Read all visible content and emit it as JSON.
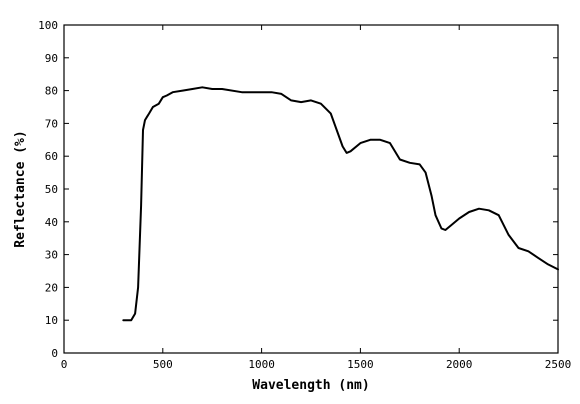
{
  "chart_data": {
    "type": "line",
    "title": "",
    "xlabel": "Wavelength (nm)",
    "ylabel": "Reflectance (%)",
    "xlim": [
      0,
      2500
    ],
    "ylim": [
      0,
      100
    ],
    "x_ticks": [
      0,
      500,
      1000,
      1500,
      2000,
      2500
    ],
    "y_ticks": [
      0,
      10,
      20,
      30,
      40,
      50,
      60,
      70,
      80,
      90,
      100
    ],
    "grid": false,
    "legend": "none",
    "line_color": "#000000",
    "series": [
      {
        "x": [
          300,
          340,
          360,
          375,
          390,
          400,
          410,
          420,
          430,
          450,
          480,
          500,
          520,
          550,
          600,
          650,
          700,
          750,
          800,
          900,
          950,
          1000,
          1050,
          1100,
          1150,
          1200,
          1250,
          1300,
          1350,
          1380,
          1410,
          1430,
          1450,
          1500,
          1550,
          1600,
          1650,
          1700,
          1750,
          1800,
          1830,
          1860,
          1880,
          1910,
          1930,
          1960,
          2000,
          2050,
          2100,
          2150,
          2200,
          2250,
          2300,
          2350,
          2400,
          2450,
          2500
        ],
        "y": [
          10,
          10,
          12,
          20,
          45,
          68,
          71,
          72,
          73,
          75,
          76,
          78,
          78.5,
          79.5,
          80,
          80.5,
          81,
          80.5,
          80.5,
          79.5,
          79.5,
          79.5,
          79.5,
          79,
          77,
          76.5,
          77,
          76,
          73,
          68,
          63,
          61,
          61.5,
          64,
          65,
          65,
          64,
          59,
          58,
          57.5,
          55,
          48,
          42,
          38,
          37.5,
          39,
          41,
          43,
          44,
          43.5,
          42,
          36,
          32,
          31,
          29,
          27,
          25.5
        ]
      }
    ]
  }
}
